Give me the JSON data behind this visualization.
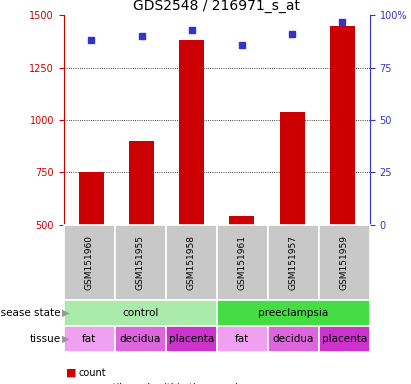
{
  "title": "GDS2548 / 216971_s_at",
  "samples": [
    "GSM151960",
    "GSM151955",
    "GSM151958",
    "GSM151961",
    "GSM151957",
    "GSM151959"
  ],
  "counts": [
    750,
    900,
    1380,
    540,
    1040,
    1450
  ],
  "percentiles": [
    88,
    90,
    93,
    86,
    91,
    97
  ],
  "ylim_left": [
    500,
    1500
  ],
  "ylim_right": [
    0,
    100
  ],
  "yticks_left": [
    500,
    750,
    1000,
    1250,
    1500
  ],
  "yticks_right": [
    0,
    25,
    50,
    75,
    100
  ],
  "ytick_right_labels": [
    "0",
    "25",
    "50",
    "75",
    "100%"
  ],
  "bar_color": "#cc0000",
  "dot_color": "#3333cc",
  "bar_width": 0.5,
  "disease_states": [
    {
      "label": "control",
      "start": 0,
      "end": 3,
      "color": "#aaeaaa"
    },
    {
      "label": "preeclampsia",
      "start": 3,
      "end": 6,
      "color": "#44dd44"
    }
  ],
  "tissues": [
    {
      "label": "fat",
      "start": 0,
      "end": 1,
      "color": "#f0a0f0"
    },
    {
      "label": "decidua",
      "start": 1,
      "end": 2,
      "color": "#dd66dd"
    },
    {
      "label": "placenta",
      "start": 2,
      "end": 3,
      "color": "#cc33cc"
    },
    {
      "label": "fat",
      "start": 3,
      "end": 4,
      "color": "#f0a0f0"
    },
    {
      "label": "decidua",
      "start": 4,
      "end": 5,
      "color": "#dd66dd"
    },
    {
      "label": "placenta",
      "start": 5,
      "end": 6,
      "color": "#cc33cc"
    }
  ],
  "sample_row_color": "#c8c8c8",
  "legend_count_color": "#cc0000",
  "legend_percentile_color": "#3333cc",
  "title_fontsize": 10,
  "tick_fontsize": 7,
  "label_fontsize": 7.5,
  "sample_fontsize": 6.5,
  "annot_fontsize": 7.5,
  "legend_fontsize": 7
}
